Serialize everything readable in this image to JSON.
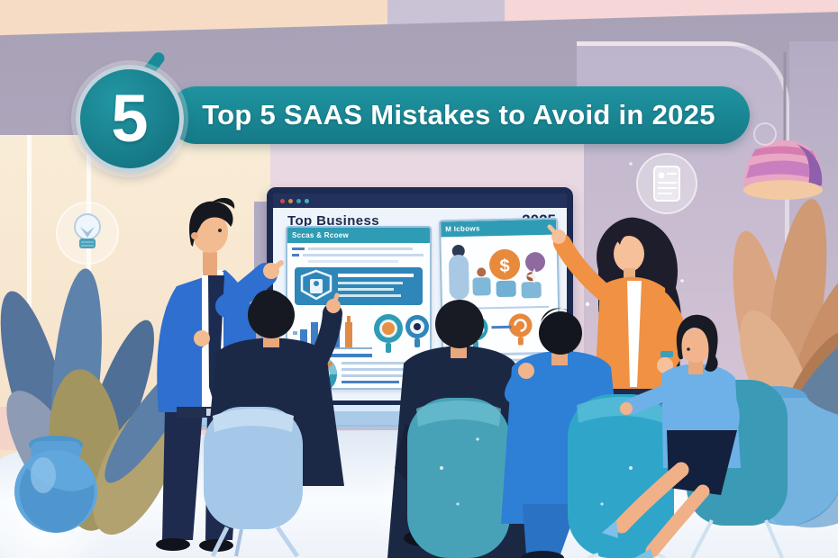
{
  "banner": {
    "number": "5",
    "title": "Top 5 SAAS Mistakes to Avoid in 2025"
  },
  "screen": {
    "title": "Top Business",
    "year": "2025",
    "window_dots": [
      "#c84b4b",
      "#d98a44",
      "#3d9fae",
      "#46b1ba"
    ],
    "left_panel": {
      "header": "Sccas & Rcoew"
    },
    "right_panel": {
      "header": "M Icbows",
      "coin_symbol": "$"
    }
  },
  "icons": {
    "lightbulb": "lightbulb-icon",
    "document": "document-icon",
    "lamp": "pendant-lamp",
    "shield": "shield-icon",
    "coin": "coin-icon",
    "gauge": "gauge-icon"
  },
  "colors": {
    "banner_teal": "#1a8b98",
    "panel_teal": "#2f9cb5",
    "orange": "#ef9144",
    "navy_suit": "#1b2844",
    "bright_blue": "#2e7fd6",
    "chair_blue": "#a6c8e8",
    "chair_teal": "#3aa0ba",
    "purple": "#8e6a9e"
  }
}
